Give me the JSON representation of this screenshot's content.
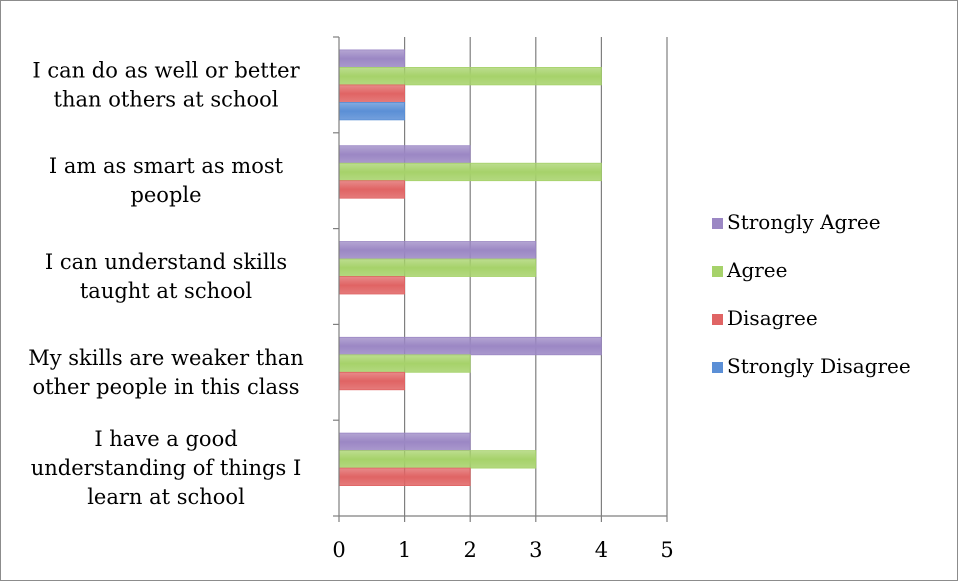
{
  "chart_data": {
    "type": "bar",
    "orientation": "horizontal",
    "title": "",
    "xlabel": "",
    "ylabel": "",
    "xlim": [
      0,
      5
    ],
    "x_ticks": [
      "0",
      "1",
      "2",
      "3",
      "4",
      "5"
    ],
    "grid": true,
    "legend_position": "right",
    "categories": [
      [
        "I can do as well or better",
        "than others at school"
      ],
      [
        "I am as smart as most",
        "people"
      ],
      [
        "I can understand skills",
        "taught at school"
      ],
      [
        "My skills are weaker than",
        "other people in this class"
      ],
      [
        "I have a good",
        "understanding of things I",
        "learn at school"
      ]
    ],
    "series": [
      {
        "name": "Strongly Agree",
        "color": "#9b87c4",
        "values": [
          1,
          2,
          3,
          4,
          2
        ]
      },
      {
        "name": "Agree",
        "color": "#a6d26a",
        "values": [
          4,
          4,
          3,
          2,
          3
        ]
      },
      {
        "name": "Disagree",
        "color": "#e06464",
        "values": [
          1,
          1,
          1,
          1,
          2
        ]
      },
      {
        "name": "Strongly Disagree",
        "color": "#5b8fd6",
        "values": [
          1,
          0,
          0,
          0,
          0
        ]
      }
    ]
  }
}
